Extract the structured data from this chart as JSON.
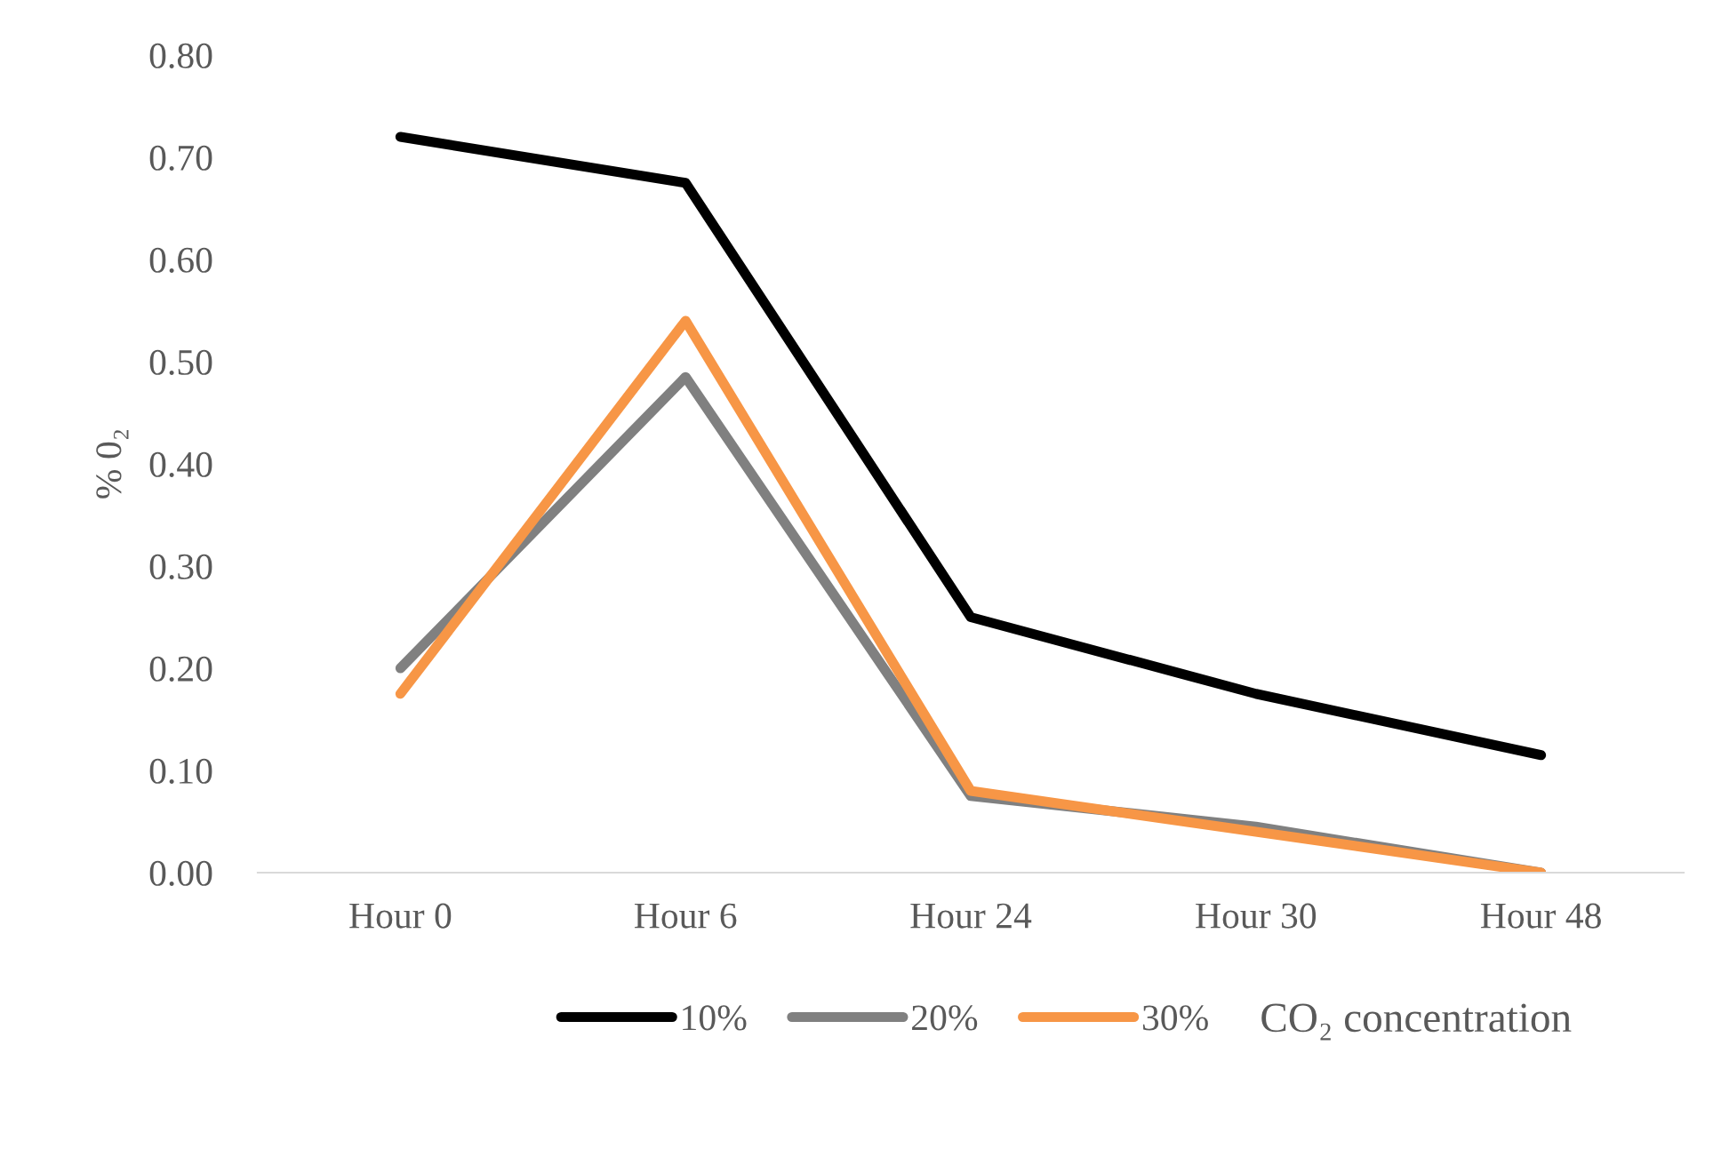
{
  "chart_data": {
    "type": "line",
    "ylabel": "% 0₂",
    "legend_title": "CO₂ concentration",
    "categories": [
      "Hour 0",
      "Hour 6",
      "Hour 24",
      "Hour 30",
      "Hour 48"
    ],
    "series": [
      {
        "name": "10%",
        "color": "#000000",
        "values": [
          0.72,
          0.675,
          0.25,
          0.175,
          0.115
        ]
      },
      {
        "name": "20%",
        "color": "#808080",
        "values": [
          0.2,
          0.485,
          0.075,
          0.045,
          0.0
        ]
      },
      {
        "name": "30%",
        "color": "#f79646",
        "values": [
          0.175,
          0.54,
          0.08,
          0.04,
          0.0
        ]
      }
    ],
    "ylim": [
      0,
      0.8
    ],
    "yticks": [
      {
        "value": 0,
        "label": "0.00"
      },
      {
        "value": 0.1,
        "label": "0.10"
      },
      {
        "value": 0.2,
        "label": "0.20"
      },
      {
        "value": 0.3,
        "label": "0.30"
      },
      {
        "value": 0.4,
        "label": "0.40"
      },
      {
        "value": 0.5,
        "label": "0.50"
      },
      {
        "value": 0.6,
        "label": "0.60"
      },
      {
        "value": 0.7,
        "label": "0.70"
      },
      {
        "value": 0.8,
        "label": "0.80"
      }
    ],
    "grid": false,
    "legend": "bottom",
    "marker": "none",
    "line_style": "solid"
  }
}
